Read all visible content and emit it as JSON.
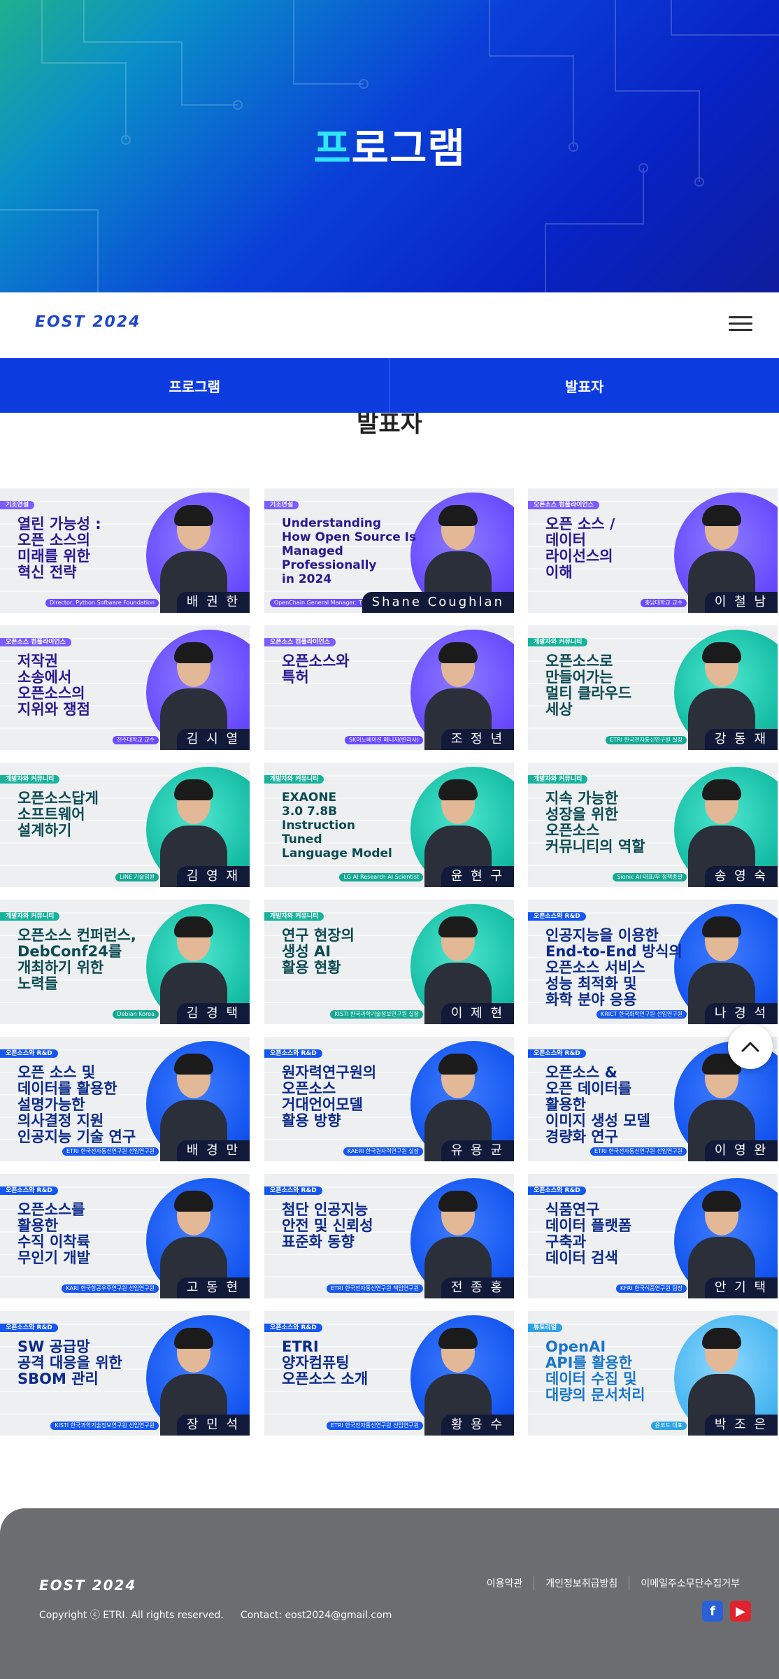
{
  "hero": {
    "title_first": "프",
    "title_rest": "로그램"
  },
  "header": {
    "logo": "EOST 2024",
    "menu_icon": "hamburger-icon"
  },
  "tabs": [
    {
      "label": "프로그램"
    },
    {
      "label": "발표자"
    }
  ],
  "section": {
    "title": "발표자"
  },
  "cards": [
    {
      "theme": "purple",
      "category": "기조연설",
      "title": "열린 가능성 :\n오픈 소스의\n미래를 위한\n혁신 전략",
      "affiliation": "Director, Python Software Foundation",
      "name": "배 권 한"
    },
    {
      "theme": "purple",
      "category": "기조연설",
      "title": "Understanding\nHow Open Source Is\nManaged\nProfessionally\nin 2024",
      "affiliation": "OpenChain General Manager, The Linux Foundation",
      "name": "Shane Coughlan",
      "en": true
    },
    {
      "theme": "purple",
      "category": "오픈소스 컴플라이언스",
      "title": "오픈 소스 /\n데이터\n라이선스의\n이해",
      "affiliation": "충남대학교 교수",
      "name": "이 철 남"
    },
    {
      "theme": "purple",
      "category": "오픈소스 컴플라이언스",
      "title": "저작권\n소송에서\n오픈소스의\n지위와 쟁점",
      "affiliation": "전주대학교 교수",
      "name": "김 시 열"
    },
    {
      "theme": "purple",
      "category": "오픈소스 컴플라이언스",
      "title": "오픈소스와\n특허",
      "affiliation": "SK이노베이션 매니저(변리사)",
      "name": "조 정 년"
    },
    {
      "theme": "teal",
      "category": "개발자와 커뮤니티",
      "title": "오픈소스로\n만들어가는\n멀티 클라우드\n세상",
      "affiliation": "ETRI 한국전자통신연구원 실장",
      "name": "강 동 재"
    },
    {
      "theme": "teal",
      "category": "개발자와 커뮤니티",
      "title": "오픈소스답게\n소프트웨어\n설계하기",
      "affiliation": "LINE 기술임원",
      "name": "김 영 재"
    },
    {
      "theme": "teal",
      "category": "개발자와 커뮤니티",
      "title": "EXAONE\n3.0 7.8B\nInstruction\nTuned\nLanguage Model",
      "affiliation": "LG AI Research AI Scientist",
      "name": "윤 현 구",
      "en": true
    },
    {
      "theme": "teal",
      "category": "개발자와 커뮤니티",
      "title": "지속 가능한\n성장을 위한\n오픈소스\n커뮤니티의 역할",
      "affiliation": "Sionic AI 대표/부 정책총괄",
      "name": "송 영 숙"
    },
    {
      "theme": "teal",
      "category": "개발자와 커뮤니티",
      "title": "오픈소스 컨퍼런스,\nDebConf24를\n개최하기 위한\n노력들",
      "affiliation": "Debian Korea",
      "name": "김 경 택"
    },
    {
      "theme": "teal",
      "category": "개발자와 커뮤니티",
      "title": "연구 현장의\n생성 AI\n활용 현황",
      "affiliation": "KISTI 한국과학기술정보연구원 실장",
      "name": "이 제 현"
    },
    {
      "theme": "blue",
      "category": "오픈소스와 R&D",
      "title": "인공지능을 이용한\nEnd-to-End 방식의\n오픈소스 서비스\n성능 최적화 및\n화학 분야 응용",
      "affiliation": "KRICT 한국화학연구원 선임연구원",
      "name": "나 경 석"
    },
    {
      "theme": "blue",
      "category": "오픈소스와 R&D",
      "title": "오픈 소스 및\n데이터를 활용한\n설명가능한\n의사결정 지원\n인공지능 기술 연구",
      "affiliation": "ETRI 한국전자통신연구원 선임연구원",
      "name": "배 경 만"
    },
    {
      "theme": "blue",
      "category": "오픈소스와 R&D",
      "title": "원자력연구원의\n오픈소스\n거대언어모델\n활용 방향",
      "affiliation": "KAERI 한국원자력연구원 실장",
      "name": "유 용 균"
    },
    {
      "theme": "blue",
      "category": "오픈소스와 R&D",
      "title": "오픈소스 &\n오픈 데이터를\n활용한\n이미지 생성 모델\n경량화 연구",
      "affiliation": "ETRI 한국전자통신연구원 선임연구원",
      "name": "이 영 완"
    },
    {
      "theme": "blue",
      "category": "오픈소스와 R&D",
      "title": "오픈소스를\n활용한\n수직 이착륙\n무인기 개발",
      "affiliation": "KARI 한국항공우주연구원 선임연구원",
      "name": "고 동 현"
    },
    {
      "theme": "blue",
      "category": "오픈소스와 R&D",
      "title": "첨단 인공지능\n안전 및 신뢰성\n표준화 동향",
      "affiliation": "ETRI 한국전자통신연구원 책임연구원",
      "name": "전 종 홍"
    },
    {
      "theme": "blue",
      "category": "오픈소스와 R&D",
      "title": "식품연구\n데이터 플랫폼\n구축과\n데이터 검색",
      "affiliation": "KFRI 한국식품연구원 팀장",
      "name": "안 기 택"
    },
    {
      "theme": "blue",
      "category": "오픈소스와 R&D",
      "title": "SW 공급망\n공격 대응을 위한\nSBOM 관리",
      "affiliation": "KISTI 한국과학기술정보연구원 선임연구원",
      "name": "장 민 석"
    },
    {
      "theme": "blue",
      "category": "오픈소스와 R&D",
      "title": "ETRI\n양자컴퓨팅\n오픈소스 소개",
      "affiliation": "ETRI 한국전자통신연구원 선임연구원",
      "name": "황 용 수"
    },
    {
      "theme": "sky",
      "category": "튜토리얼",
      "title": "OpenAI\nAPI를 활용한\n데이터 수집 및\n대량의 문서처리",
      "affiliation": "윤코드 대표",
      "name": "박 조 은"
    }
  ],
  "scroll_top": {
    "icon": "chevron-up-icon"
  },
  "footer": {
    "logo": "EOST 2024",
    "copyright": "Copyright ⓒ ETRI. All rights reserved.",
    "contact": "Contact: eost2024@gmail.com",
    "links": [
      "이용약관",
      "개인정보취급방침",
      "이메일주소무단수집거부"
    ],
    "social": [
      {
        "label": "f",
        "icon": "facebook-icon"
      },
      {
        "label": "▶",
        "icon": "youtube-icon"
      }
    ]
  }
}
